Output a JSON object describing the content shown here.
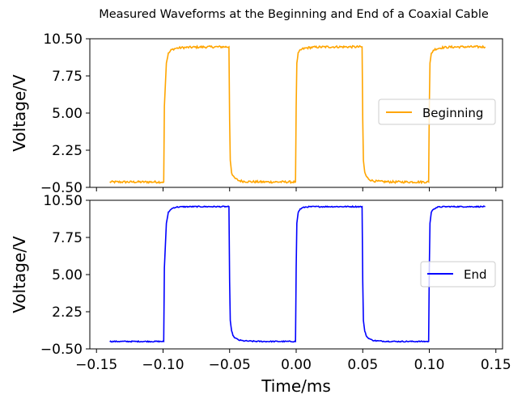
{
  "chart_data": {
    "type": "line",
    "title": "Measured Waveforms at the Beginning and End of a Coaxial Cable",
    "xlabel": "Time/ms",
    "xlim": [
      -0.155,
      0.155
    ],
    "xticks": [
      -0.15,
      -0.1,
      -0.05,
      0.0,
      0.05,
      0.1,
      0.15
    ],
    "xtick_labels": [
      "−0.15",
      "−0.10",
      "−0.05",
      "0.00",
      "0.05",
      "0.10",
      "0.15"
    ],
    "panels": [
      {
        "ylabel": "Voltage/V",
        "ylim": [
          -0.5,
          10.5
        ],
        "yticks": [
          -0.5,
          2.25,
          5.0,
          7.75,
          10.5
        ],
        "ytick_labels": [
          "−0.50",
          "2.25",
          "5.00",
          "7.75",
          "10.50"
        ],
        "legend": "center-right",
        "series": [
          {
            "name": "Beginning",
            "color": "#FFA500",
            "noise": 0.08,
            "x": [
              -0.14,
              -0.0995,
              -0.099,
              -0.0975,
              -0.096,
              -0.094,
              -0.092,
              -0.09,
              -0.085,
              -0.075,
              -0.06,
              -0.0505,
              -0.05,
              -0.0495,
              -0.0485,
              -0.047,
              -0.045,
              -0.043,
              -0.04,
              -0.035,
              -0.025,
              -0.01,
              -0.0005,
              0.0,
              0.0005,
              0.0015,
              0.003,
              0.005,
              0.007,
              0.01,
              0.015,
              0.025,
              0.04,
              0.0495,
              0.05,
              0.0505,
              0.0515,
              0.053,
              0.055,
              0.057,
              0.06,
              0.065,
              0.075,
              0.09,
              0.0995,
              0.1,
              0.1005,
              0.1015,
              0.103,
              0.105,
              0.107,
              0.11,
              0.115,
              0.125,
              0.135,
              0.142
            ],
            "y": [
              -0.1,
              -0.1,
              5.5,
              8.7,
              9.4,
              9.65,
              9.75,
              9.8,
              9.85,
              9.88,
              9.9,
              9.9,
              4.5,
              1.5,
              0.6,
              0.25,
              0.1,
              0.0,
              -0.05,
              -0.08,
              -0.1,
              -0.1,
              -0.1,
              5.5,
              8.7,
              9.4,
              9.65,
              9.75,
              9.8,
              9.85,
              9.88,
              9.9,
              9.9,
              9.9,
              4.5,
              1.5,
              0.6,
              0.25,
              0.1,
              0.0,
              -0.05,
              -0.08,
              -0.1,
              -0.1,
              -0.1,
              5.5,
              8.7,
              9.4,
              9.65,
              9.75,
              9.8,
              9.85,
              9.88,
              9.9,
              9.9,
              9.9
            ]
          }
        ]
      },
      {
        "ylabel": "Voltage/V",
        "ylim": [
          -0.5,
          10.5
        ],
        "yticks": [
          -0.5,
          2.25,
          5.0,
          7.75,
          10.5
        ],
        "ytick_labels": [
          "−0.50",
          "2.25",
          "5.00",
          "7.75",
          "10.50"
        ],
        "legend": "center-right",
        "series": [
          {
            "name": "End",
            "color": "#0000FF",
            "noise": 0.04,
            "x": [
              -0.14,
              -0.0995,
              -0.099,
              -0.0975,
              -0.096,
              -0.094,
              -0.092,
              -0.09,
              -0.085,
              -0.075,
              -0.06,
              -0.0505,
              -0.05,
              -0.0495,
              -0.0485,
              -0.047,
              -0.045,
              -0.043,
              -0.04,
              -0.035,
              -0.025,
              -0.01,
              -0.0005,
              0.0,
              0.0005,
              0.0015,
              0.003,
              0.005,
              0.007,
              0.01,
              0.015,
              0.025,
              0.04,
              0.0495,
              0.05,
              0.0505,
              0.0515,
              0.053,
              0.055,
              0.057,
              0.06,
              0.065,
              0.075,
              0.09,
              0.0995,
              0.1,
              0.1005,
              0.1015,
              0.103,
              0.105,
              0.107,
              0.11,
              0.115,
              0.125,
              0.135,
              0.142
            ],
            "y": [
              0.05,
              0.05,
              5.5,
              8.8,
              9.6,
              9.85,
              9.95,
              10.0,
              10.02,
              10.03,
              10.03,
              10.03,
              4.5,
              1.6,
              0.8,
              0.4,
              0.25,
              0.15,
              0.1,
              0.07,
              0.05,
              0.05,
              0.05,
              5.5,
              8.8,
              9.6,
              9.85,
              9.95,
              10.0,
              10.02,
              10.03,
              10.03,
              10.03,
              10.03,
              4.5,
              1.6,
              0.8,
              0.4,
              0.25,
              0.15,
              0.1,
              0.07,
              0.05,
              0.05,
              0.05,
              5.5,
              8.8,
              9.6,
              9.85,
              9.95,
              10.0,
              10.02,
              10.03,
              10.03,
              10.03,
              10.03
            ]
          }
        ]
      }
    ]
  }
}
